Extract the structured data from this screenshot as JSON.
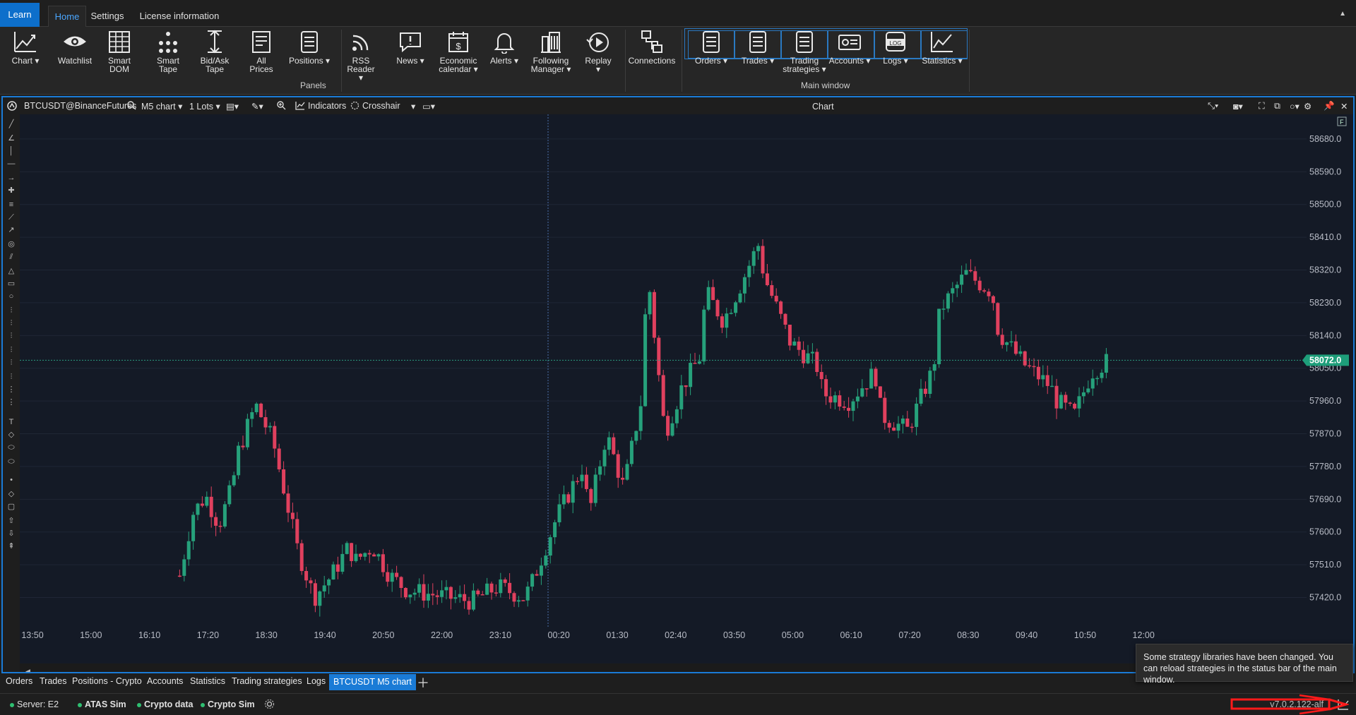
{
  "ribbon_tabs": {
    "learn": "Learn",
    "home": "Home",
    "settings": "Settings",
    "license": "License information"
  },
  "ribbon": {
    "panels_label": "Panels",
    "main_window_label": "Main window",
    "buttons": [
      {
        "line1": "Chart",
        "line2": "",
        "dropdown": true,
        "icon": "chart-icon"
      },
      {
        "line1": "Watchlist",
        "line2": "",
        "dropdown": false,
        "icon": "eye-icon"
      },
      {
        "line1": "Smart",
        "line2": "DOM",
        "dropdown": false,
        "icon": "grid-icon"
      },
      {
        "line1": "Smart",
        "line2": "Tape",
        "dropdown": false,
        "icon": "tape-icon"
      },
      {
        "line1": "Bid/Ask",
        "line2": "Tape",
        "dropdown": false,
        "icon": "bidask-icon"
      },
      {
        "line1": "All",
        "line2": "Prices",
        "dropdown": false,
        "icon": "prices-icon"
      },
      {
        "line1": "Positions",
        "line2": "",
        "dropdown": true,
        "icon": "list-icon"
      },
      {
        "line1": "RSS",
        "line2": "Reader",
        "dropdown": true,
        "icon": "rss-icon"
      },
      {
        "line1": "News",
        "line2": "",
        "dropdown": true,
        "icon": "news-icon"
      },
      {
        "line1": "Economic",
        "line2": "calendar",
        "dropdown": true,
        "icon": "calendar-icon"
      },
      {
        "line1": "Alerts",
        "line2": "",
        "dropdown": true,
        "icon": "bell-icon"
      },
      {
        "line1": "Following",
        "line2": "Manager",
        "dropdown": true,
        "icon": "building-icon"
      },
      {
        "line1": "Replay",
        "line2": "",
        "dropdown": true,
        "icon": "replay-icon"
      },
      {
        "line1": "Connections",
        "line2": "",
        "dropdown": false,
        "icon": "connections-icon"
      },
      {
        "line1": "Orders",
        "line2": "",
        "dropdown": true,
        "icon": "orders-icon"
      },
      {
        "line1": "Trades",
        "line2": "",
        "dropdown": true,
        "icon": "trades-icon"
      },
      {
        "line1": "Trading",
        "line2": "strategies",
        "dropdown": true,
        "icon": "strategies-icon"
      },
      {
        "line1": "Accounts",
        "line2": "",
        "dropdown": true,
        "icon": "accounts-icon"
      },
      {
        "line1": "Logs",
        "line2": "",
        "dropdown": true,
        "icon": "logs-icon"
      },
      {
        "line1": "Statistics",
        "line2": "",
        "dropdown": true,
        "icon": "statistics-icon"
      }
    ],
    "log_badge": "LOG"
  },
  "chart_toolbar": {
    "instrument": "BTCUSDT@BinanceFutures",
    "timeframe": "M5 chart",
    "lots": "1 Lots",
    "indicators": "Indicators",
    "crosshair": "Crosshair",
    "title": "Chart",
    "f_badge": "F"
  },
  "chart_data": {
    "type": "candlestick",
    "instrument": "BTCUSDT@BinanceFutures",
    "timeframe": "M5",
    "ylim": [
      57390,
      58740
    ],
    "y_ticks": [
      58680.0,
      58590.0,
      58500.0,
      58410.0,
      58320.0,
      58230.0,
      58140.0,
      58050.0,
      57960.0,
      57870.0,
      57780.0,
      57690.0,
      57600.0,
      57510.0,
      57420.0
    ],
    "x_ticks": [
      "13:50",
      "15:00",
      "16:10",
      "17:20",
      "18:30",
      "19:40",
      "20:50",
      "22:00",
      "23:10",
      "00:20",
      "01:30",
      "02:40",
      "03:50",
      "05:00",
      "06:10",
      "07:20",
      "08:30",
      "09:40",
      "10:50",
      "12:00"
    ],
    "current_price": "58072.0",
    "series": [
      {
        "t": "17:20",
        "close_path": [
          57480,
          57650,
          57700,
          57620,
          57720
        ]
      },
      {
        "t": "18:30",
        "close_path": [
          57820,
          57950,
          57850,
          57640
        ]
      },
      {
        "t": "19:40",
        "close_path": [
          57560,
          57420,
          57480,
          57560
        ]
      },
      {
        "t": "20:50",
        "close_path": [
          57520,
          57560,
          57480,
          57440
        ]
      },
      {
        "t": "23:10",
        "close_path": [
          57410,
          57450,
          57420
        ]
      },
      {
        "t": "00:20",
        "close_path": [
          57450,
          57640,
          57780
        ]
      },
      {
        "t": "01:30",
        "close_path": [
          57650,
          57870,
          57720,
          57960
        ]
      },
      {
        "t": "02:40",
        "close_path": [
          58320,
          57870,
          58000,
          58080
        ]
      },
      {
        "t": "03:50",
        "close_path": [
          58260,
          58180,
          58280,
          58390
        ]
      },
      {
        "t": "05:00",
        "close_path": [
          58300,
          58120,
          58060
        ]
      },
      {
        "t": "06:10",
        "close_path": [
          57980,
          57960,
          58040
        ]
      },
      {
        "t": "07:20",
        "close_path": [
          57920,
          57880,
          58050
        ]
      },
      {
        "t": "08:30",
        "close_path": [
          58210,
          58310,
          58260
        ]
      },
      {
        "t": "09:40",
        "close_path": [
          58150,
          58060,
          58000
        ]
      },
      {
        "t": "10:50",
        "close_path": [
          57960,
          57920,
          58040,
          58072
        ]
      }
    ]
  },
  "bottom_tabs": [
    "Orders",
    "Trades",
    "Positions - Crypto",
    "Accounts",
    "Statistics",
    "Trading strategies",
    "Logs"
  ],
  "bottom_tab_active": "BTCUSDT M5 chart",
  "status": {
    "server": "Server: E2",
    "atas_sim": "ATAS Sim",
    "crypto_data": "Crypto data",
    "crypto_sim": "Crypto Sim",
    "version": "v7.0.2.122-alf"
  },
  "toast": {
    "message": "Some strategy libraries have been changed. You can reload strategies in the status bar of the main window."
  },
  "colors": {
    "up": "#26a17b",
    "down": "#e0405e",
    "current_price_bg": "#1e9e7a",
    "accent": "#1a7bd6"
  }
}
